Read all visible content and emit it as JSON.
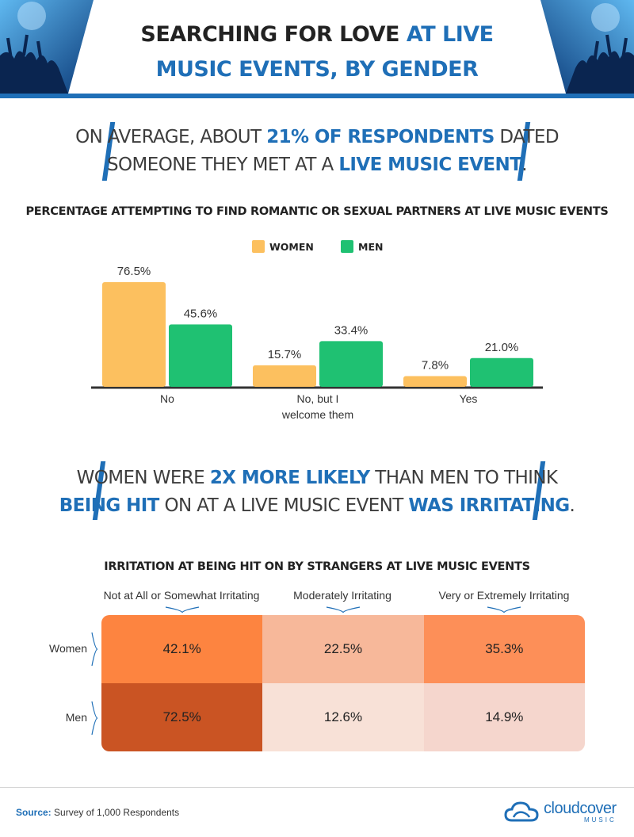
{
  "header": {
    "title_part1": "Searching for Love",
    "title_part2": "at Live",
    "title_part3": "Music Events, by Gender"
  },
  "callout1": {
    "pre": "On average, about ",
    "hl1": "21% of respondents",
    "mid": " dated",
    "line2_pre": "someone they met at a ",
    "hl2": "live music event",
    "end": "."
  },
  "callout2": {
    "pre": "Women were ",
    "hl1": "2x more likely",
    "mid": " than men to think",
    "hl2": "being hit",
    "mid2": " on at a live music event ",
    "hl3": "was irritating",
    "end": "."
  },
  "colors": {
    "women": "#fcc05f",
    "men": "#1fc172",
    "accent": "#1f6fb7"
  },
  "chart_data": [
    {
      "type": "bar",
      "title": "Percentage Attempting to Find Romantic or Sexual Partners at Live Music Events",
      "categories": [
        "No",
        "No, but I welcome them",
        "Yes"
      ],
      "series": [
        {
          "name": "Women",
          "values": [
            76.5,
            15.7,
            7.8
          ],
          "labels": [
            "76.5%",
            "15.7%",
            "7.8%"
          ]
        },
        {
          "name": "Men",
          "values": [
            45.6,
            33.4,
            21.0
          ],
          "labels": [
            "45.6%",
            "33.4%",
            "21.0%"
          ]
        }
      ],
      "ylim": [
        0,
        76.5
      ],
      "grid": false,
      "legend": "top-center"
    },
    {
      "type": "heatmap",
      "title": "Irritation at Being Hit On by Strangers at Live Music Events",
      "columns": [
        "Not at All or Somewhat Irritating",
        "Moderately Irritating",
        "Very or Extremely Irritating"
      ],
      "rows": [
        "Women",
        "Men"
      ],
      "values": [
        [
          42.1,
          22.5,
          35.3
        ],
        [
          72.5,
          12.6,
          14.9
        ]
      ],
      "labels": [
        [
          "42.1%",
          "22.5%",
          "35.3%"
        ],
        [
          "72.5%",
          "12.6%",
          "14.9%"
        ]
      ],
      "cell_colors": [
        [
          "#fd8440",
          "#f7b89a",
          "#fd8f58"
        ],
        [
          "#ca5423",
          "#f8e1d7",
          "#f5d6cd"
        ]
      ]
    }
  ],
  "footer": {
    "source_label": "Source:",
    "source_text": " Survey of 1,000 Respondents",
    "logo_main": "cloudcover",
    "logo_sub": "MUSIC"
  }
}
